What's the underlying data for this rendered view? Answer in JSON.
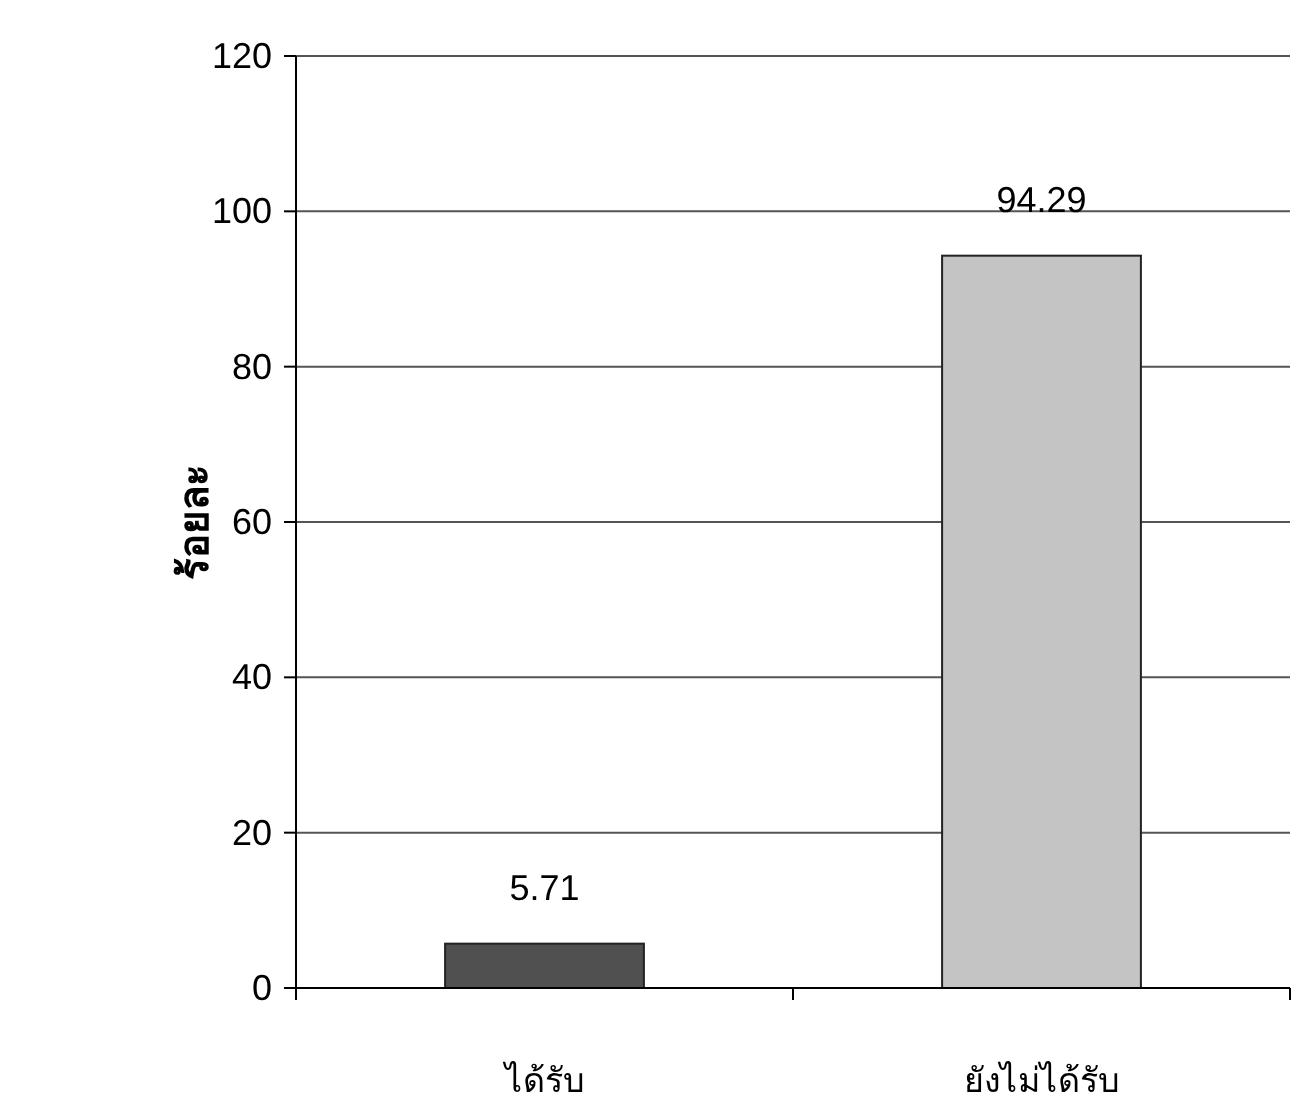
{
  "chart_data": {
    "type": "bar",
    "ylabel": "ร้อยละ",
    "categories": [
      "ได้รับ",
      "ยังไม่ได้รับ"
    ],
    "colors": [
      "#505050",
      "#c4c4c4"
    ],
    "values": [
      5.71,
      94.29
    ],
    "data_labels": true,
    "ylim": [
      0,
      120
    ],
    "yticks": [
      0,
      20,
      40,
      60,
      80,
      100,
      120
    ],
    "grid": "y"
  }
}
